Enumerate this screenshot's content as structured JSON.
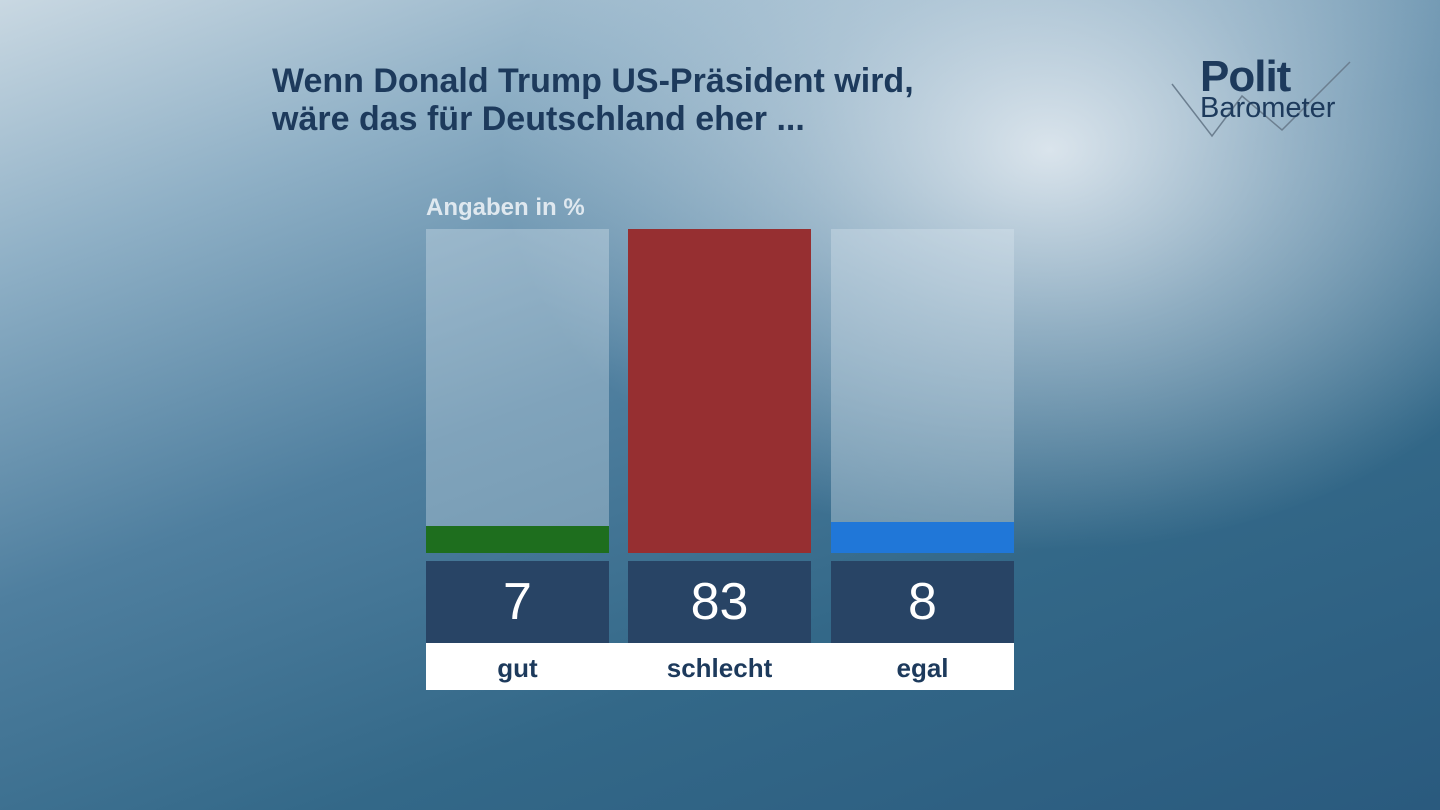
{
  "title_lines": [
    "Wenn Donald Trump US-Präsident wird,",
    "wäre das für Deutschland eher ..."
  ],
  "logo": {
    "line1": "Polit",
    "line2": "Barometer"
  },
  "chart_data": {
    "type": "bar",
    "title": "Wenn Donald Trump US-Präsident wird, wäre das für Deutschland eher ...",
    "unit_label": "Angaben in %",
    "categories": [
      "gut",
      "schlecht",
      "egal"
    ],
    "values": [
      7,
      83,
      8
    ],
    "colors": [
      "#1e6e1e",
      "#962f31",
      "#2077d8"
    ],
    "ylim": [
      0,
      83
    ],
    "grid": false
  }
}
